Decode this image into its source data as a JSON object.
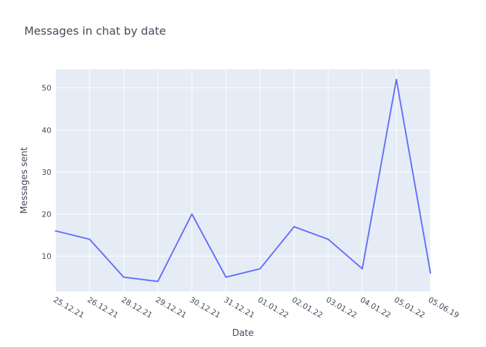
{
  "chart_data": {
    "type": "line",
    "title": "Messages in chat by date",
    "xlabel": "Date",
    "ylabel": "Messages sent",
    "categories": [
      "25.12.21",
      "26.12.21",
      "28.12.21",
      "29.12.21",
      "30.12.21",
      "31.12.21",
      "01.01.22",
      "02.01.22",
      "03.01.22",
      "04.01.22",
      "05.01.22",
      "05.06.19"
    ],
    "series": [
      {
        "values": [
          16,
          14,
          5,
          4,
          20,
          5,
          7,
          17,
          14,
          7,
          52,
          6
        ]
      }
    ],
    "ylim": [
      1.6,
      54.4
    ],
    "yticks": [
      10,
      20,
      30,
      40,
      50
    ],
    "grid": true,
    "colors": {
      "line": "#636efa",
      "plot_bg": "#e5ecf6",
      "grid": "#ffffff",
      "text": "#444a5a"
    }
  }
}
